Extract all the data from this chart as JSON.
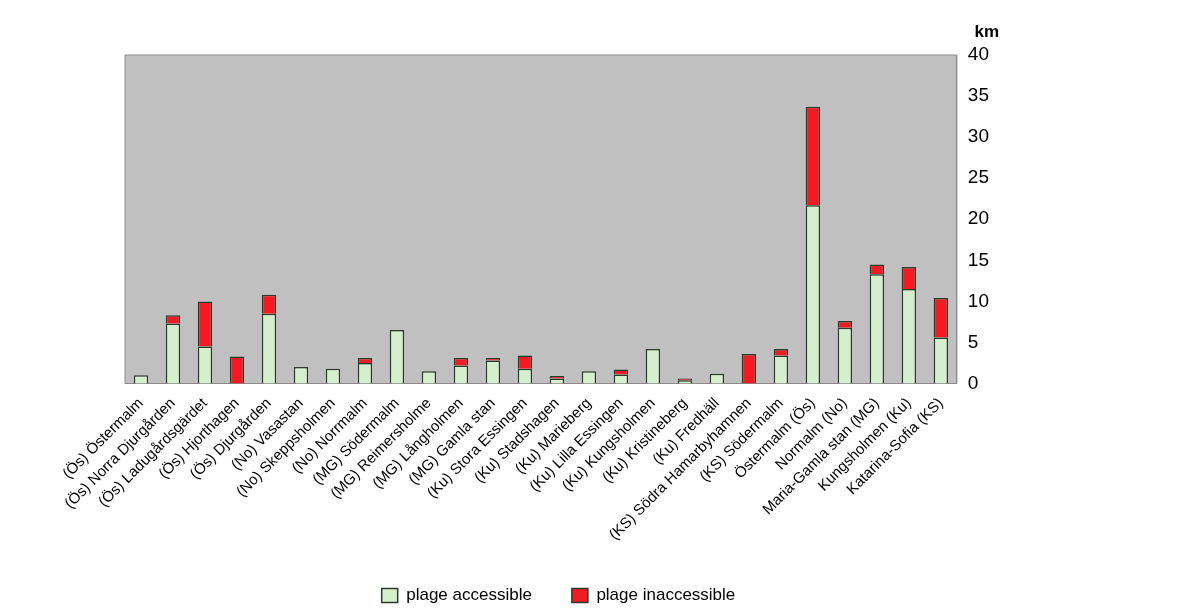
{
  "chart_data": {
    "type": "bar",
    "stacked": true,
    "ylabel": "km",
    "categories": [
      "(Ös) Östermalm",
      "(Ös) Norra Djurgården",
      "(Ös) Ladugårdsgärdet",
      "(Ös) Hjorthagen",
      "(Ös) Djurgården",
      "(No) Vasastan",
      "(No) Skeppsholmen",
      "(No) Norrmalm",
      "(MG) Södermalm",
      "(MG) Reimersholme",
      "(MG) Långholmen",
      "(MG) Gamla stan",
      "(Ku) Stora Essingen",
      "(Ku) Stadshagen",
      "(Ku) Marieberg",
      "(Ku) Lilla Essingen",
      "(Ku) Kungsholmen",
      "(Ku) Kristineberg",
      "(Ku) Fredhäll",
      "(KS) Södra Hamarbyhamnen",
      "(KS) Södermalm",
      "Östermalm (Ös)",
      "Normalm (No)",
      "Maria-Gamla stan (MG)",
      "Kungsholmen (Ku)",
      "Katarina-Sofia (KS)"
    ],
    "series": [
      {
        "name": "plage accessible",
        "color": "#d5efcc",
        "values": [
          1.0,
          7.3,
          4.5,
          0,
          8.5,
          2.0,
          1.8,
          2.5,
          6.5,
          1.5,
          2.2,
          2.8,
          1.8,
          0.6,
          1.5,
          1.1,
          4.2,
          0.4,
          1.2,
          0,
          3.4,
          21.7,
          6.8,
          13.3,
          11.5,
          5.6
        ]
      },
      {
        "name": "plage inaccessible",
        "color": "#ee1c24",
        "values": [
          0,
          1.0,
          5.5,
          3.3,
          2.3,
          0,
          0,
          0.6,
          0,
          0,
          0.9,
          0.3,
          1.6,
          0.3,
          0,
          0.6,
          0,
          0.2,
          0,
          3.6,
          0.8,
          12.0,
          0.8,
          1.2,
          2.7,
          4.8
        ]
      }
    ],
    "ylim": [
      0,
      40
    ],
    "yticks": [
      0,
      5,
      10,
      15,
      20,
      25,
      30,
      35,
      40
    ],
    "grid": false,
    "legend": "bottom"
  }
}
